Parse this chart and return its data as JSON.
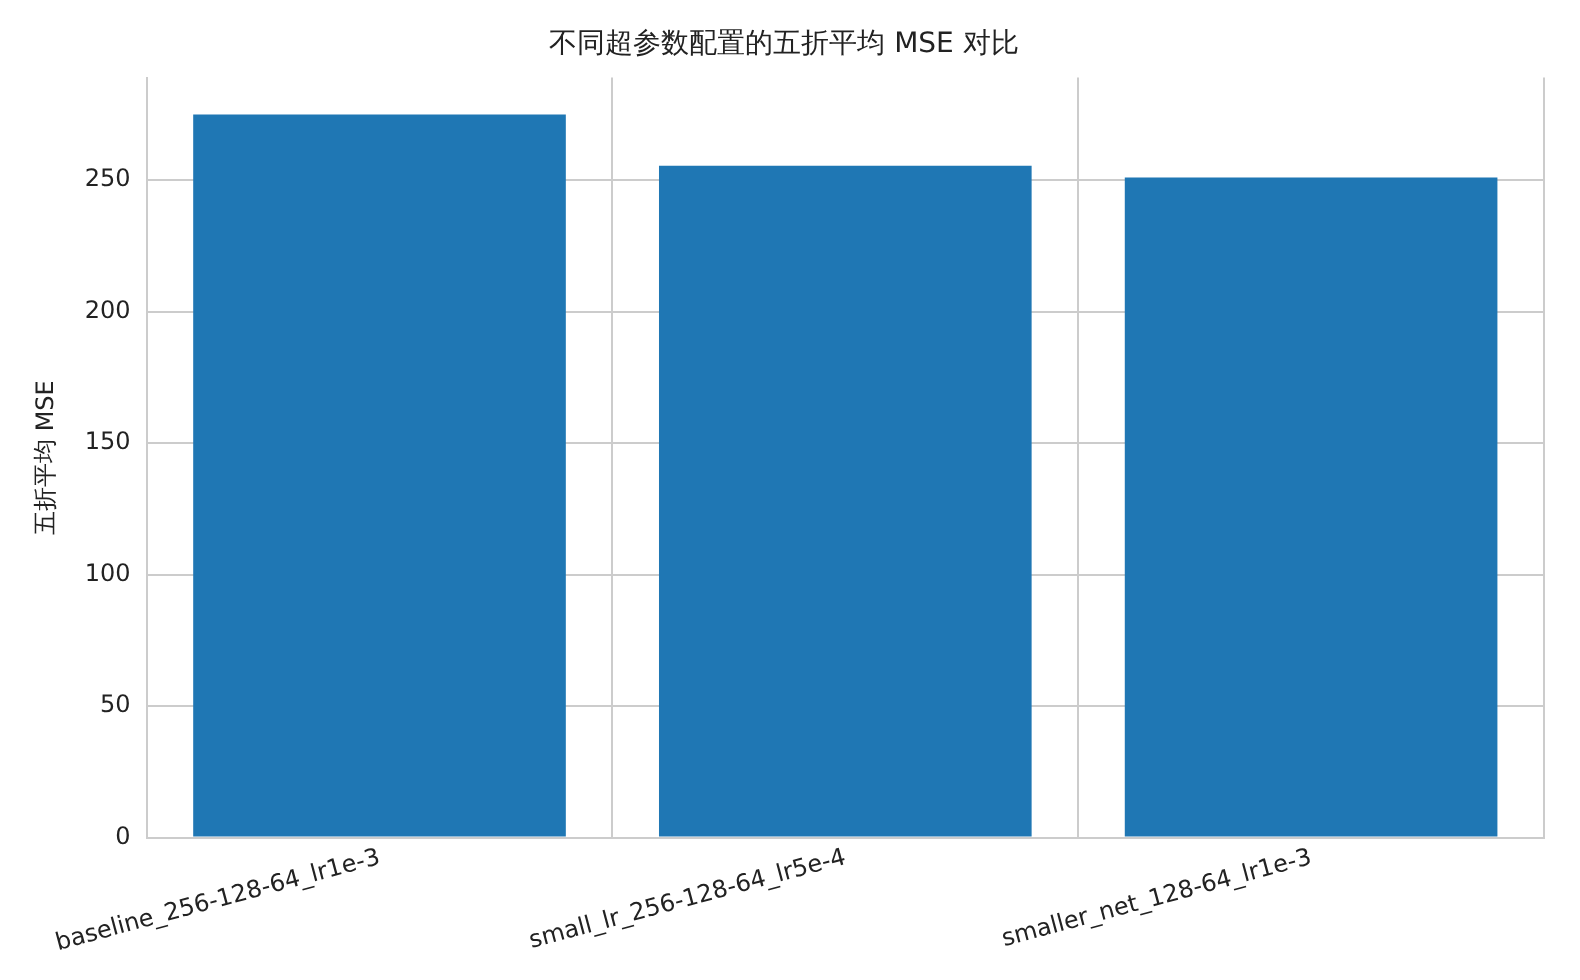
{
  "chart_data": {
    "type": "bar",
    "title": "不同超参数配置的五折平均 MSE 对比",
    "ylabel": "五折平均 MSE",
    "categories": [
      "baseline_256-128-64_lr1e-3",
      "small_lr_256-128-64_lr5e-4",
      "smaller_net_128-64_lr1e-3"
    ],
    "values": [
      275,
      255.5,
      251
    ],
    "color": "#1f77b4",
    "ylim": [
      0,
      289
    ],
    "yticks": [
      0,
      50,
      100,
      150,
      200,
      250
    ],
    "grid": true,
    "legend": false
  }
}
